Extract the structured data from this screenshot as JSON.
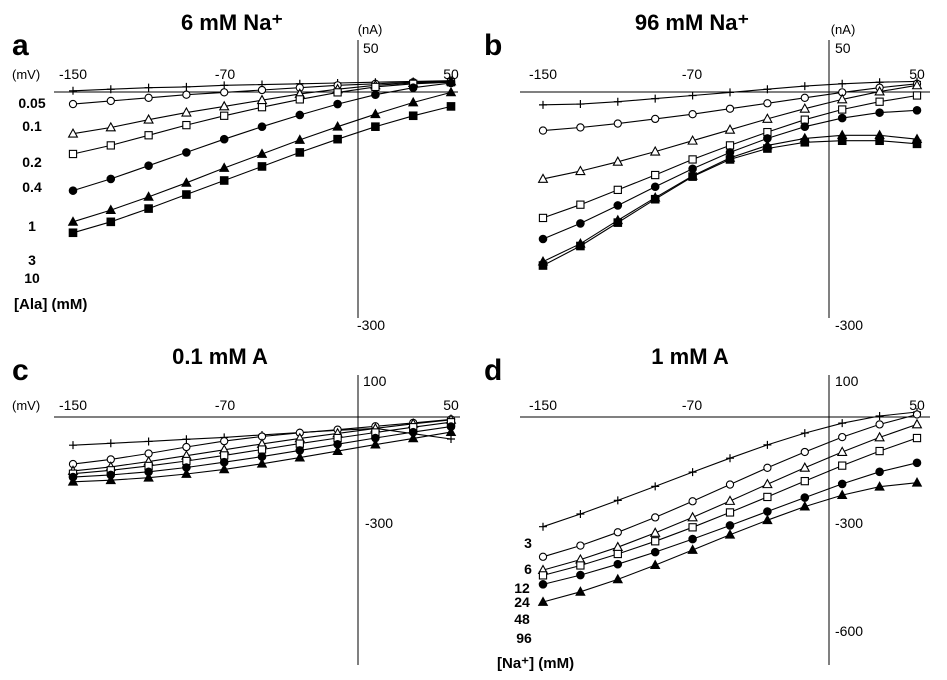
{
  "chart_data": [
    {
      "panel": "a",
      "type": "line",
      "title": "6 mM Na⁺",
      "x_unit": "(mV)",
      "y_unit": "(nA)",
      "x_ticks": [
        "-150",
        "-70",
        "50"
      ],
      "y_ticks": [
        "50",
        "-300"
      ],
      "xlim": [
        -150,
        50
      ],
      "ylim": [
        -300,
        50
      ],
      "legend_title": "[Ala] (mM)",
      "x": [
        -150,
        -130,
        -110,
        -90,
        -70,
        -50,
        -30,
        -10,
        10,
        30,
        50
      ],
      "series": [
        {
          "name": "0.05",
          "marker": "plus",
          "values": [
            -10,
            -8,
            -6,
            -5,
            -3,
            -2,
            -1,
            0,
            1,
            2,
            3
          ]
        },
        {
          "name": "0.1",
          "marker": "open-circle",
          "values": [
            -27,
            -23,
            -19,
            -15,
            -12,
            -9,
            -6,
            -3,
            -1,
            1,
            2
          ]
        },
        {
          "name": "0.2",
          "marker": "open-triangle",
          "values": [
            -65,
            -57,
            -47,
            -38,
            -30,
            -22,
            -14,
            -8,
            -3,
            0,
            2
          ]
        },
        {
          "name": "0.4",
          "marker": "open-square",
          "values": [
            -91,
            -80,
            -67,
            -54,
            -42,
            -31,
            -21,
            -12,
            -5,
            -1,
            1
          ]
        },
        {
          "name": "1",
          "marker": "filled-circle",
          "values": [
            -138,
            -123,
            -106,
            -89,
            -72,
            -56,
            -41,
            -27,
            -15,
            -6,
            0
          ]
        },
        {
          "name": "3",
          "marker": "filled-triangle",
          "values": [
            -178,
            -163,
            -146,
            -128,
            -109,
            -91,
            -73,
            -56,
            -40,
            -25,
            -12
          ]
        },
        {
          "name": "10",
          "marker": "filled-square",
          "values": [
            -192,
            -178,
            -161,
            -143,
            -125,
            -107,
            -89,
            -72,
            -56,
            -42,
            -30
          ]
        }
      ]
    },
    {
      "panel": "b",
      "type": "line",
      "title": "96 mM Na⁺",
      "x_unit": "",
      "y_unit": "(nA)",
      "x_ticks": [
        "-150",
        "-70",
        "50"
      ],
      "y_ticks": [
        "50",
        "-300"
      ],
      "xlim": [
        -150,
        50
      ],
      "ylim": [
        -300,
        50
      ],
      "x": [
        -150,
        -130,
        -110,
        -90,
        -70,
        -50,
        -30,
        -10,
        10,
        30,
        50
      ],
      "series": [
        {
          "name": "0.05",
          "marker": "plus",
          "values": [
            -28,
            -27,
            -24,
            -20,
            -16,
            -12,
            -8,
            -4,
            -1,
            1,
            2
          ]
        },
        {
          "name": "0.1",
          "marker": "open-circle",
          "values": [
            -61,
            -57,
            -52,
            -46,
            -40,
            -33,
            -26,
            -19,
            -12,
            -6,
            -1
          ]
        },
        {
          "name": "0.2",
          "marker": "open-triangle",
          "values": [
            -123,
            -113,
            -101,
            -88,
            -74,
            -60,
            -46,
            -33,
            -21,
            -11,
            -3
          ]
        },
        {
          "name": "0.4",
          "marker": "open-square",
          "values": [
            -173,
            -156,
            -137,
            -118,
            -98,
            -80,
            -63,
            -47,
            -34,
            -24,
            -16
          ]
        },
        {
          "name": "1",
          "marker": "filled-circle",
          "values": [
            -200,
            -180,
            -157,
            -133,
            -110,
            -89,
            -71,
            -56,
            -45,
            -38,
            -35
          ]
        },
        {
          "name": "3",
          "marker": "filled-triangle",
          "values": [
            -229,
            -206,
            -176,
            -147,
            -119,
            -96,
            -80,
            -71,
            -67,
            -67,
            -72
          ]
        },
        {
          "name": "10",
          "marker": "filled-square",
          "values": [
            -234,
            -209,
            -179,
            -149,
            -120,
            -98,
            -84,
            -76,
            -74,
            -74,
            -78
          ]
        }
      ]
    },
    {
      "panel": "c",
      "type": "line",
      "title": "0.1 mM A",
      "x_unit": "(mV)",
      "y_unit": "",
      "x_ticks": [
        "-150",
        "-70",
        "50"
      ],
      "y_ticks": [
        "100",
        "-300"
      ],
      "xlim": [
        -150,
        50
      ],
      "ylim": [
        -800,
        100
      ],
      "x": [
        -150,
        -130,
        -110,
        -90,
        -70,
        -50,
        -30,
        -10,
        10,
        30,
        50
      ],
      "series": [
        {
          "name": "3",
          "marker": "plus",
          "values": [
            -107,
            -101,
            -95,
            -88,
            -82,
            -74,
            -66,
            -59,
            -53,
            -70,
            -87
          ]
        },
        {
          "name": "6",
          "marker": "open-circle",
          "values": [
            -168,
            -153,
            -134,
            -113,
            -94,
            -79,
            -67,
            -57,
            -46,
            -35,
            -24
          ]
        },
        {
          "name": "12",
          "marker": "open-triangle",
          "values": [
            -190,
            -177,
            -160,
            -141,
            -122,
            -103,
            -85,
            -69,
            -53,
            -38,
            -25
          ]
        },
        {
          "name": "24",
          "marker": "open-square",
          "values": [
            -199,
            -188,
            -174,
            -158,
            -140,
            -121,
            -102,
            -84,
            -66,
            -49,
            -33
          ]
        },
        {
          "name": "48",
          "marker": "filled-circle",
          "values": [
            -210,
            -203,
            -193,
            -179,
            -162,
            -144,
            -124,
            -104,
            -84,
            -65,
            -47
          ]
        },
        {
          "name": "96",
          "marker": "filled-triangle",
          "values": [
            -225,
            -220,
            -212,
            -200,
            -185,
            -167,
            -147,
            -126,
            -105,
            -85,
            -65
          ]
        }
      ]
    },
    {
      "panel": "d",
      "type": "line",
      "title": "1 mM A",
      "x_unit": "",
      "y_unit": "",
      "x_ticks": [
        "-150",
        "-70",
        "50"
      ],
      "y_ticks": [
        "100",
        "-300",
        "-600"
      ],
      "xlim": [
        -150,
        50
      ],
      "ylim": [
        -800,
        100
      ],
      "legend_title": "[Na⁺] (mM)",
      "x": [
        -150,
        -130,
        -110,
        -90,
        -70,
        -50,
        -30,
        -10,
        10,
        30,
        50
      ],
      "series": [
        {
          "name": "3",
          "marker": "plus",
          "values": [
            -370,
            -329,
            -285,
            -240,
            -194,
            -149,
            -106,
            -68,
            -36,
            -13,
            0
          ]
        },
        {
          "name": "6",
          "marker": "open-circle",
          "values": [
            -467,
            -431,
            -388,
            -340,
            -288,
            -234,
            -180,
            -129,
            -81,
            -40,
            -8
          ]
        },
        {
          "name": "12",
          "marker": "open-triangle",
          "values": [
            -510,
            -476,
            -436,
            -390,
            -340,
            -287,
            -233,
            -180,
            -129,
            -82,
            -40
          ]
        },
        {
          "name": "24",
          "marker": "open-square",
          "values": [
            -527,
            -495,
            -458,
            -417,
            -372,
            -324,
            -274,
            -223,
            -173,
            -126,
            -84
          ]
        },
        {
          "name": "48",
          "marker": "filled-circle",
          "values": [
            -556,
            -526,
            -491,
            -452,
            -410,
            -366,
            -321,
            -276,
            -232,
            -193,
            -164
          ]
        },
        {
          "name": "96",
          "marker": "filled-triangle",
          "values": [
            -613,
            -580,
            -540,
            -494,
            -445,
            -396,
            -349,
            -305,
            -268,
            -241,
            -228
          ]
        }
      ]
    }
  ]
}
